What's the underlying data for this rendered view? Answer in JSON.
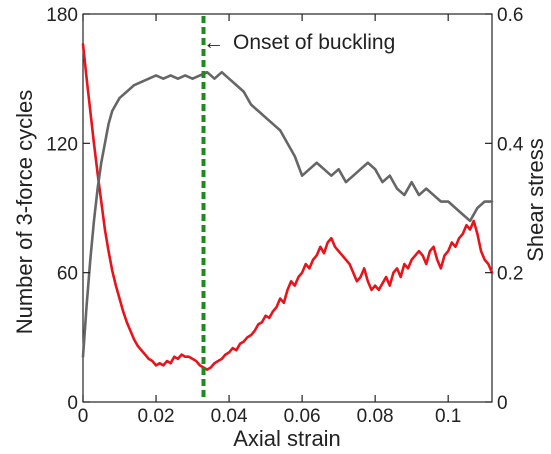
{
  "chart_data": {
    "type": "line",
    "xlabel": "Axial strain",
    "ylabel": "Number of 3-force cycles",
    "y2label": "Shear stress",
    "xlim": [
      0,
      0.112
    ],
    "ylim": [
      0,
      180
    ],
    "y2lim": [
      0,
      0.6
    ],
    "x_ticks": [
      0,
      0.02,
      0.04,
      0.06,
      0.08,
      0.1
    ],
    "x_tick_labels": [
      "0",
      "0.02",
      "0.04",
      "0.06",
      "0.08",
      "0.1"
    ],
    "y_ticks": [
      0,
      60,
      120,
      180
    ],
    "y_tick_labels": [
      "0",
      "60",
      "120",
      "180"
    ],
    "y2_ticks": [
      0,
      0.2,
      0.4,
      0.6
    ],
    "y2_tick_labels": [
      "0",
      "0.2",
      "0.4",
      "0.6"
    ],
    "grid": false,
    "annotation": {
      "text": "Onset of buckling",
      "x": 0.033,
      "arrow_glyph": "←"
    },
    "series": [
      {
        "axis": "left",
        "color": "#e8141b",
        "x": [
          0,
          0.001,
          0.002,
          0.003,
          0.004,
          0.005,
          0.006,
          0.007,
          0.008,
          0.009,
          0.01,
          0.011,
          0.012,
          0.013,
          0.014,
          0.015,
          0.016,
          0.017,
          0.018,
          0.019,
          0.02,
          0.021,
          0.022,
          0.023,
          0.024,
          0.025,
          0.026,
          0.027,
          0.028,
          0.029,
          0.03,
          0.031,
          0.032,
          0.033,
          0.034,
          0.035,
          0.036,
          0.037,
          0.038,
          0.039,
          0.04,
          0.041,
          0.042,
          0.043,
          0.044,
          0.045,
          0.046,
          0.047,
          0.048,
          0.049,
          0.05,
          0.051,
          0.052,
          0.053,
          0.054,
          0.055,
          0.056,
          0.057,
          0.058,
          0.059,
          0.06,
          0.061,
          0.062,
          0.063,
          0.064,
          0.065,
          0.066,
          0.067,
          0.068,
          0.069,
          0.07,
          0.071,
          0.072,
          0.073,
          0.074,
          0.075,
          0.076,
          0.077,
          0.078,
          0.079,
          0.08,
          0.081,
          0.082,
          0.083,
          0.084,
          0.085,
          0.086,
          0.087,
          0.088,
          0.089,
          0.09,
          0.091,
          0.092,
          0.093,
          0.094,
          0.095,
          0.096,
          0.097,
          0.098,
          0.099,
          0.1,
          0.101,
          0.102,
          0.103,
          0.104,
          0.105,
          0.106,
          0.107,
          0.108,
          0.109,
          0.11,
          0.111,
          0.112
        ],
        "values": [
          166,
          150,
          135,
          120,
          106,
          93,
          80,
          70,
          61,
          54,
          48,
          42,
          37,
          33,
          29,
          26,
          24,
          22,
          20,
          19,
          17,
          18,
          17,
          19,
          18,
          21,
          20,
          22,
          21,
          21,
          20,
          19,
          17,
          16,
          15,
          16,
          18,
          19,
          20,
          22,
          23,
          25,
          24,
          27,
          28,
          30,
          31,
          33,
          36,
          37,
          40,
          39,
          42,
          44,
          48,
          46,
          52,
          56,
          54,
          58,
          60,
          64,
          62,
          66,
          68,
          72,
          69,
          74,
          76,
          72,
          70,
          68,
          66,
          64,
          60,
          56,
          58,
          62,
          56,
          52,
          54,
          52,
          55,
          58,
          54,
          60,
          62,
          58,
          64,
          62,
          66,
          68,
          70,
          68,
          64,
          70,
          72,
          66,
          62,
          68,
          70,
          74,
          72,
          76,
          78,
          82,
          80,
          84,
          78,
          70,
          66,
          64,
          60
        ]
      },
      {
        "axis": "right",
        "color": "#666666",
        "x": [
          0,
          0.001,
          0.002,
          0.003,
          0.004,
          0.005,
          0.006,
          0.007,
          0.008,
          0.009,
          0.01,
          0.012,
          0.014,
          0.016,
          0.018,
          0.02,
          0.022,
          0.024,
          0.026,
          0.028,
          0.03,
          0.032,
          0.034,
          0.036,
          0.038,
          0.04,
          0.042,
          0.044,
          0.046,
          0.048,
          0.05,
          0.052,
          0.054,
          0.056,
          0.058,
          0.06,
          0.062,
          0.064,
          0.066,
          0.068,
          0.07,
          0.072,
          0.074,
          0.076,
          0.078,
          0.08,
          0.082,
          0.084,
          0.086,
          0.088,
          0.09,
          0.092,
          0.094,
          0.096,
          0.098,
          0.1,
          0.102,
          0.104,
          0.106,
          0.108,
          0.11,
          0.112
        ],
        "values": [
          0.07,
          0.15,
          0.22,
          0.28,
          0.33,
          0.37,
          0.4,
          0.43,
          0.45,
          0.46,
          0.47,
          0.48,
          0.49,
          0.495,
          0.5,
          0.505,
          0.5,
          0.505,
          0.5,
          0.505,
          0.5,
          0.505,
          0.51,
          0.5,
          0.51,
          0.5,
          0.49,
          0.48,
          0.46,
          0.45,
          0.44,
          0.43,
          0.42,
          0.4,
          0.38,
          0.35,
          0.36,
          0.37,
          0.36,
          0.35,
          0.36,
          0.34,
          0.35,
          0.36,
          0.37,
          0.36,
          0.34,
          0.35,
          0.33,
          0.32,
          0.34,
          0.32,
          0.33,
          0.32,
          0.31,
          0.31,
          0.3,
          0.29,
          0.28,
          0.3,
          0.31,
          0.31
        ]
      }
    ],
    "vline": {
      "x": 0.033,
      "color": "#1f8a1f",
      "style": "dashed"
    }
  }
}
